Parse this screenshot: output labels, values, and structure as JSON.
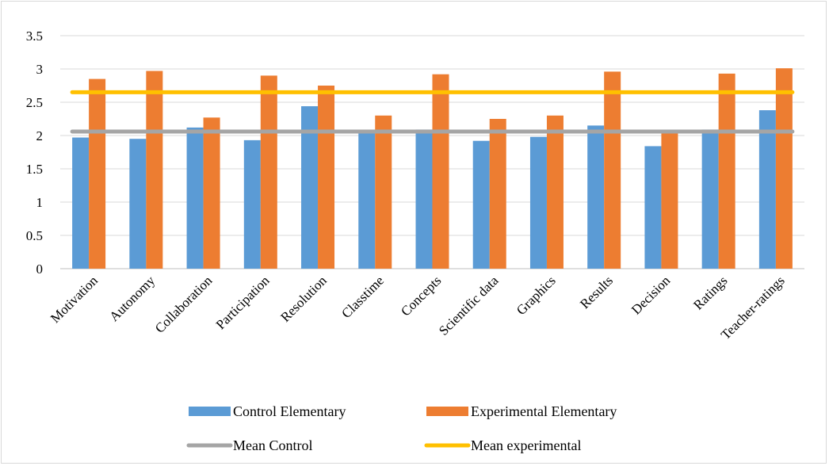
{
  "chart_data": {
    "type": "bar",
    "categories": [
      "Motivation",
      "Autonomy",
      "Collaboration",
      "Participation",
      "Resolution",
      "Classtime",
      "Concepts",
      "Scientific data",
      "Graphics",
      "Results",
      "Decision",
      "Ratings",
      "Teacher-ratings"
    ],
    "series": [
      {
        "name": "Control Elementary",
        "type": "bar",
        "color": "#5b9bd5",
        "values": [
          1.97,
          1.95,
          2.12,
          1.93,
          2.44,
          2.07,
          2.09,
          1.92,
          1.98,
          2.15,
          1.84,
          2.09,
          2.38
        ]
      },
      {
        "name": "Experimental Elementary",
        "type": "bar",
        "color": "#ed7d31",
        "values": [
          2.85,
          2.97,
          2.27,
          2.9,
          2.75,
          2.3,
          2.92,
          2.25,
          2.3,
          2.96,
          2.06,
          2.93,
          3.01
        ]
      },
      {
        "name": "Mean Control",
        "type": "line",
        "color": "#a5a5a5",
        "value": 2.06
      },
      {
        "name": "Mean experimental",
        "type": "line",
        "color": "#ffc000",
        "value": 2.65
      }
    ],
    "yticks": [
      "0",
      "0.5",
      "1",
      "1.5",
      "2",
      "2.5",
      "3",
      "3.5"
    ],
    "ylim": [
      0,
      3.5
    ],
    "grid": true,
    "legend_position": "bottom",
    "title": "",
    "xlabel": "",
    "ylabel": ""
  }
}
